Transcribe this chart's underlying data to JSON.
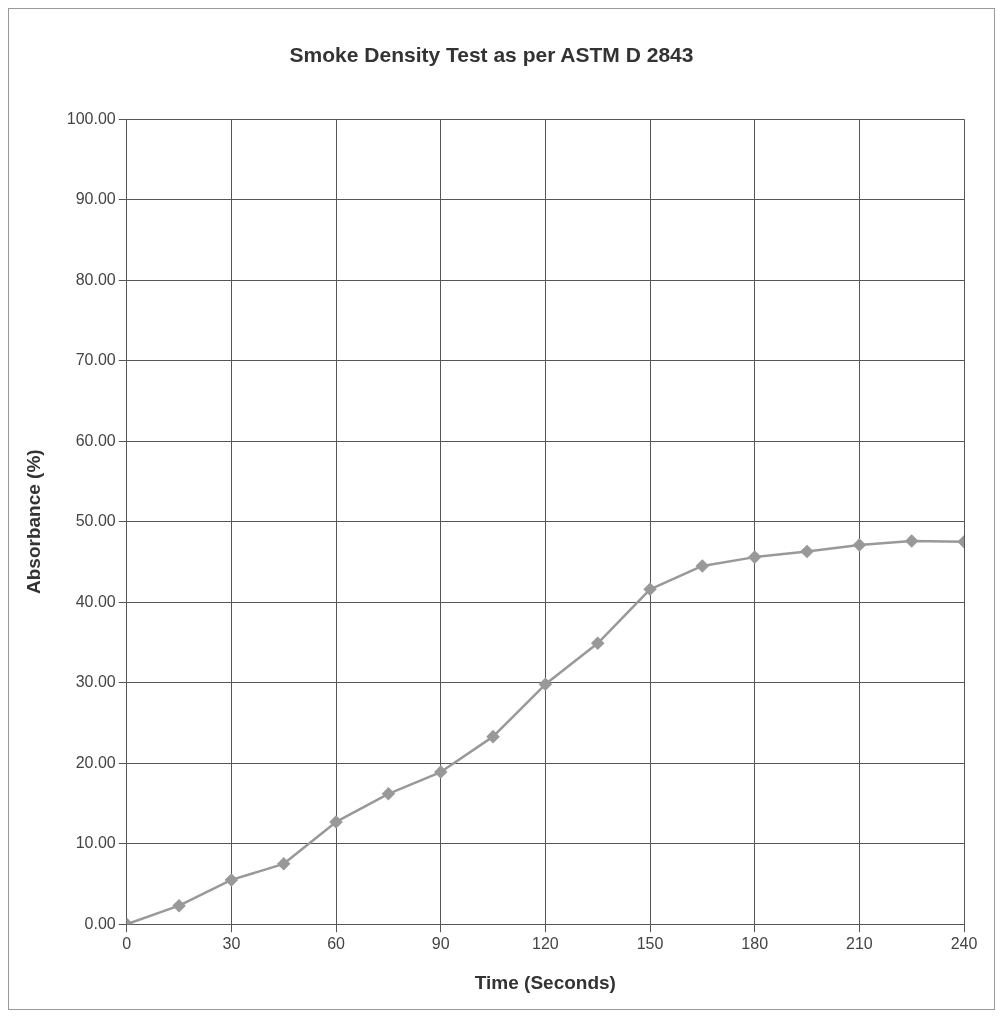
{
  "chart_data": {
    "type": "line",
    "title": "Smoke Density Test as per ASTM D 2843",
    "xlabel": "Time (Seconds)",
    "ylabel": "Absorbance (%)",
    "x": [
      0,
      15,
      30,
      45,
      60,
      75,
      90,
      105,
      120,
      135,
      150,
      165,
      180,
      195,
      210,
      225,
      240
    ],
    "series": [
      {
        "color": "#999999",
        "values": [
          0,
          2.3,
          5.5,
          7.5,
          12.7,
          16.2,
          18.9,
          23.3,
          29.8,
          34.9,
          41.6,
          44.5,
          45.6,
          46.3,
          47.1,
          47.6,
          47.5
        ]
      }
    ],
    "xlim": [
      0,
      240
    ],
    "xticks": [
      0,
      30,
      60,
      90,
      120,
      150,
      180,
      210,
      240
    ],
    "ylim": [
      0,
      100
    ],
    "yticks": [
      {
        "value": 0,
        "label": "0.00"
      },
      {
        "value": 10,
        "label": "10.00"
      },
      {
        "value": 20,
        "label": "20.00"
      },
      {
        "value": 30,
        "label": "30.00"
      },
      {
        "value": 40,
        "label": "40.00"
      },
      {
        "value": 50,
        "label": "50.00"
      },
      {
        "value": 60,
        "label": "60.00"
      },
      {
        "value": 70,
        "label": "70.00"
      },
      {
        "value": 80,
        "label": "80.00"
      },
      {
        "value": 90,
        "label": "90.00"
      },
      {
        "value": 100,
        "label": "100.00"
      }
    ],
    "grid": true,
    "legend": false,
    "marker": "diamond",
    "line_style": "solid"
  }
}
